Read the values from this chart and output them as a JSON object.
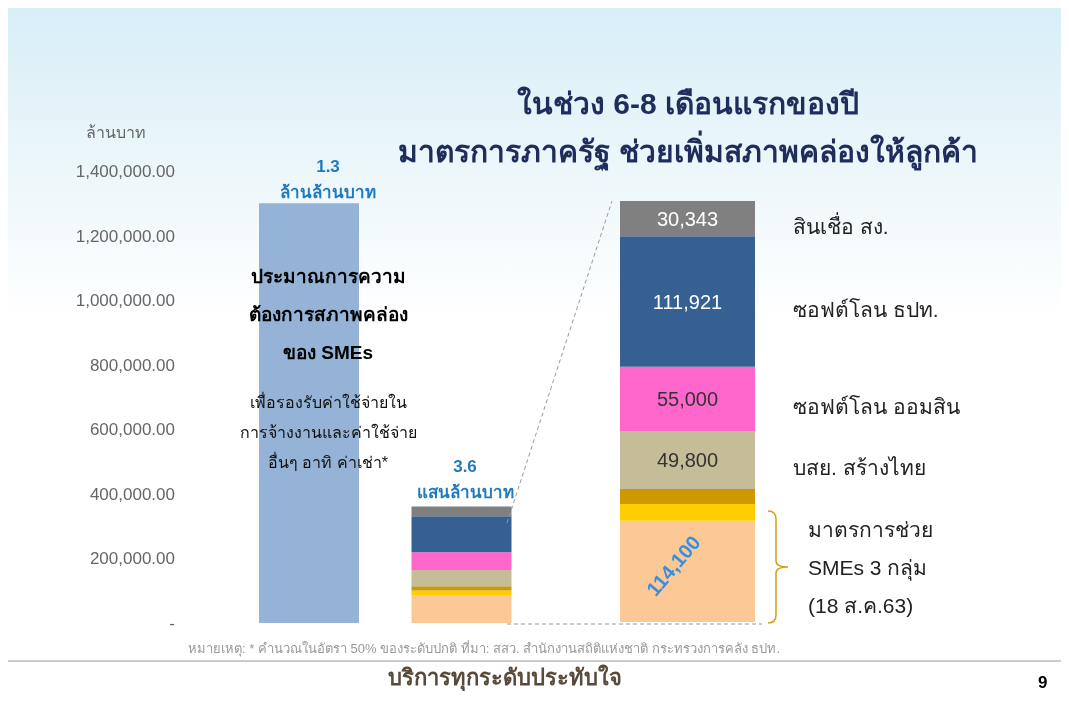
{
  "chart_data": [
    {
      "type": "bar",
      "title": "ในช่วง 6-8 เดือนแรกของปี\nมาตรการภาครัฐ ช่วยเพิ่มสภาพคล่องให้ลูกค้า",
      "ylabel": "ล้านบาท",
      "categories": [
        null,
        null
      ],
      "stacked": true,
      "series": [
        {
          "color": "#95b3d7",
          "values": [
            1300000,
            null
          ]
        },
        {
          "color": "#fcc996",
          "values": [
            null,
            87000
          ]
        },
        {
          "color": "#ffcc00",
          "values": [
            null,
            14000
          ]
        },
        {
          "color": "#cc9900",
          "values": [
            null,
            13000
          ]
        },
        {
          "color": "#c4bd97",
          "values": [
            null,
            50000
          ]
        },
        {
          "color": "#ff66cc",
          "values": [
            null,
            55000
          ]
        },
        {
          "color": "#376092",
          "values": [
            null,
            112000
          ]
        },
        {
          "color": "#808080",
          "values": [
            null,
            30000
          ]
        }
      ],
      "ylim": [
        0,
        1400000
      ],
      "yticks": [
        {
          "value": 0,
          "label": "-"
        },
        {
          "value": 200000,
          "label": "200,000.00"
        },
        {
          "value": 400000,
          "label": "400,000.00"
        },
        {
          "value": 600000,
          "label": "600,000.00"
        },
        {
          "value": 800000,
          "label": "800,000.00"
        },
        {
          "value": 1000000,
          "label": "1,000,000.00"
        },
        {
          "value": 1200000,
          "label": "1,200,000.00"
        },
        {
          "value": 1400000,
          "label": "1,400,000.00"
        }
      ],
      "annotations": [
        "1.3\nล้านล้านบาท",
        "ประมาณการความ\nต้องการสภาพคล่อง\nของ SMEs",
        "เพื่อรองรับค่าใช้จ่ายใน\nการจ้างงานและค่าใช้จ่าย\nอื่นๆ อาทิ ค่าเช่า*",
        "3.6\nแสนล้านบาท",
        "หมายเหตุ: * คำนวณในอัตรา 50% ของระดับปกติ ที่มา: สสว. สำนักงานสถิติแห่งชาติ กระทรวงการคลัง ธปท.",
        "บริการทุกระดับประทับใจ",
        "9"
      ]
    },
    {
      "type": "bar",
      "categories": [
        null
      ],
      "stacked": true,
      "series": [
        {
          "color": "#fcc996",
          "values": [
            86900
          ]
        },
        {
          "color": "#ffcc00",
          "values": [
            14300
          ]
        },
        {
          "color": "#cc9900",
          "values": [
            12900
          ]
        },
        {
          "name": "บสย. สร้างไทย",
          "color": "#c4bd97",
          "values": [
            49800
          ],
          "value_labels": [
            "49,800"
          ]
        },
        {
          "name": "ซอฟต์โลน ออมสิน",
          "color": "#ff66cc",
          "values": [
            55000
          ],
          "value_labels": [
            "55,000"
          ]
        },
        {
          "name": "ซอฟต์โลน ธปท.",
          "color": "#376092",
          "values": [
            111921
          ],
          "value_labels": [
            "111,921"
          ]
        },
        {
          "name": "สินเชื่อ สง.",
          "color": "#808080",
          "values": [
            30343
          ],
          "value_labels": [
            "30,343"
          ]
        }
      ],
      "annotations": [
        "มาตรการช่วย\nSMEs 3 กลุ่ม\n(18 ส.ค.63)",
        "114,100"
      ]
    }
  ]
}
